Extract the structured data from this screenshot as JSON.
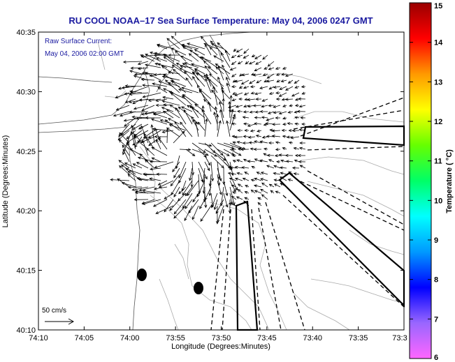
{
  "chart_data": {
    "type": "vector-map",
    "title": "RU COOL  NOAA–17  Sea Surface Temperature:  May 04, 2006 0247 GMT",
    "legend": {
      "line1": "Raw Surface Current:",
      "line2": "May 04, 2006 02:00 GMT",
      "scale_label": "50 cm/s"
    },
    "xlabel": "Longitude (Degrees:Minutes)",
    "ylabel": "Latitude (Degrees:Minutes)",
    "xticks": [
      "74:10",
      "74:05",
      "74:00",
      "73:55",
      "73:50",
      "73:45",
      "73:40",
      "73:35",
      "73:3"
    ],
    "yticks": [
      "40:10",
      "40:15",
      "40:20",
      "40:25",
      "40:30",
      "40:35"
    ],
    "colorbar": {
      "label": "Temperature ( °C)",
      "ticks": [
        "6",
        "7",
        "8",
        "9",
        "10",
        "11",
        "12",
        "13",
        "14",
        "15"
      ],
      "range": [
        6,
        15
      ],
      "colors": [
        "#ff66ff",
        "#9966ff",
        "#0000ff",
        "#0099ff",
        "#00ffff",
        "#00ff66",
        "#66ff00",
        "#ffff00",
        "#ff9900",
        "#ff0000",
        "#990000"
      ]
    },
    "current_field": {
      "center_lon_min": 54,
      "center_lat_min": 25,
      "description": "surface current vectors fanning from New York Harbor entrance"
    }
  }
}
